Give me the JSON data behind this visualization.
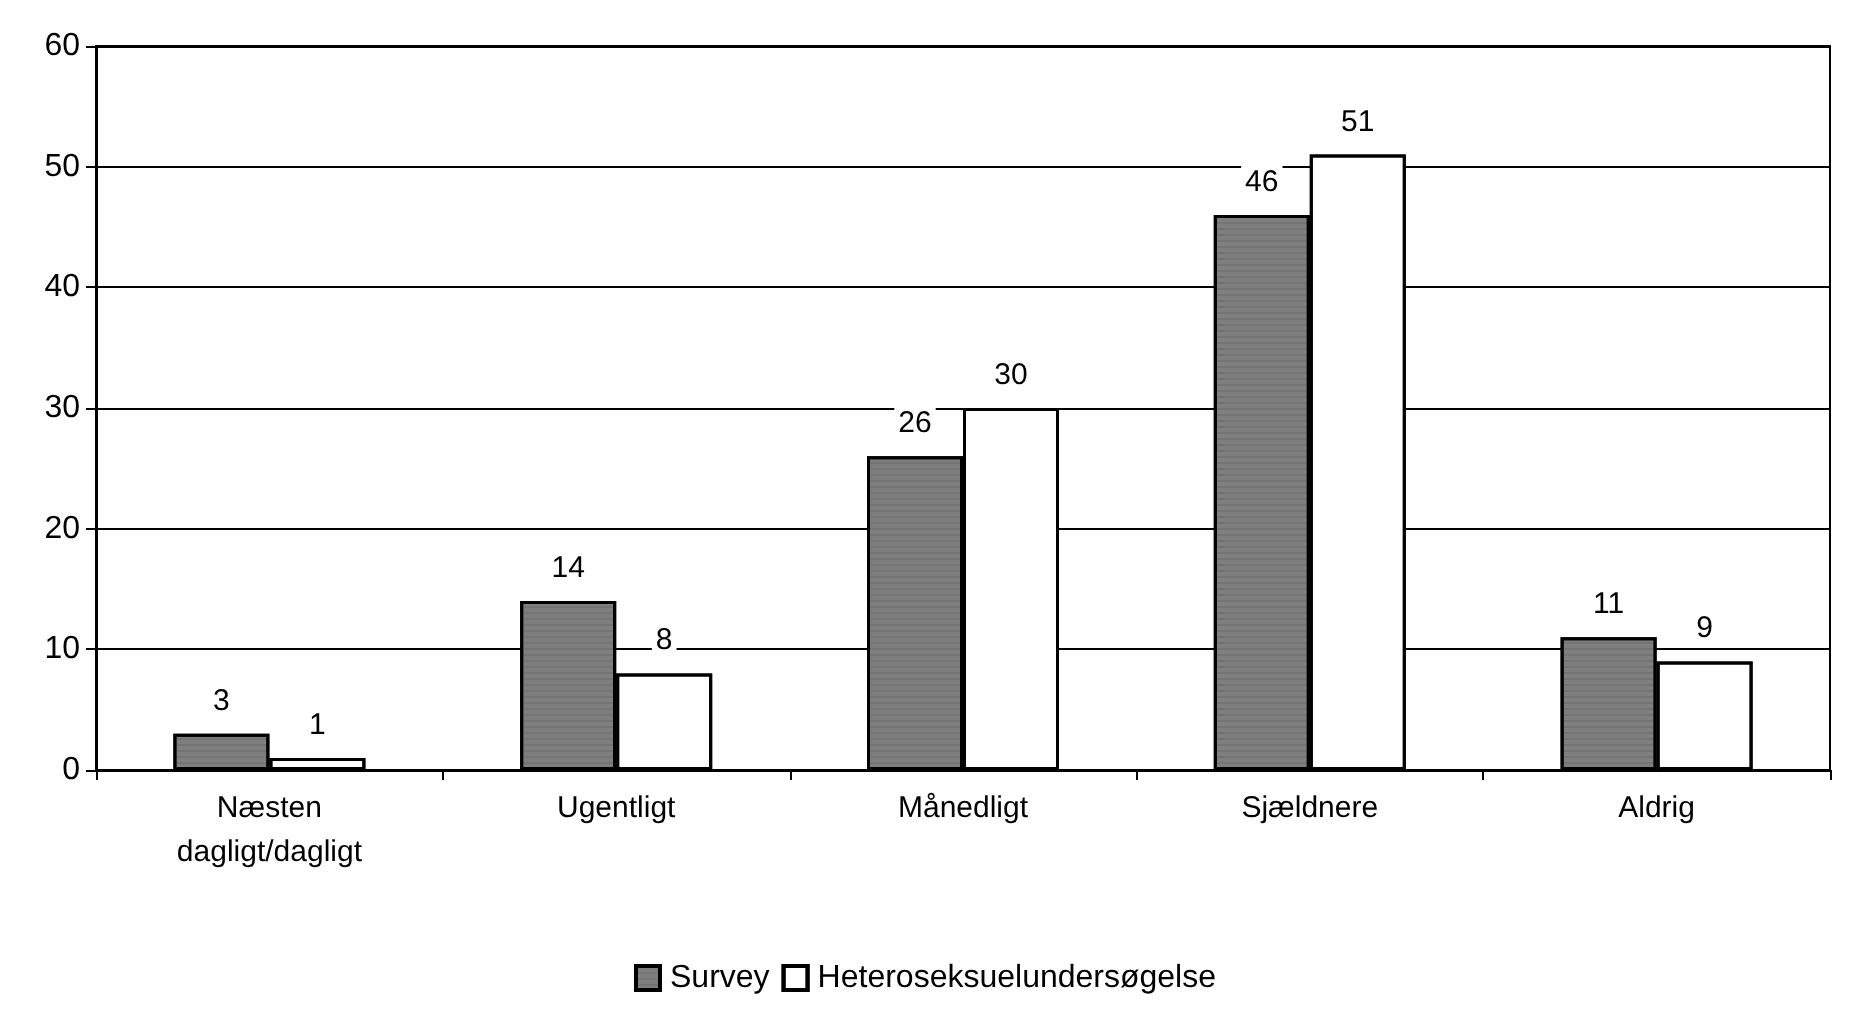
{
  "chart_data": {
    "type": "bar",
    "categories": [
      "Næsten\ndagligt/dagligt",
      "Ugentligt",
      "Månedligt",
      "Sjældnere",
      "Aldrig"
    ],
    "series": [
      {
        "name": "Survey",
        "color": "#7f7f7f",
        "values": [
          3,
          14,
          26,
          46,
          11
        ]
      },
      {
        "name": "Heteroseksuelundersøgelse",
        "color": "#ffffff",
        "values": [
          1,
          8,
          30,
          51,
          9
        ]
      }
    ],
    "ylim": [
      0,
      60
    ],
    "yticks": [
      0,
      10,
      20,
      30,
      40,
      50,
      60
    ],
    "grid": "y",
    "legend": "bottom",
    "data_labels": true
  }
}
